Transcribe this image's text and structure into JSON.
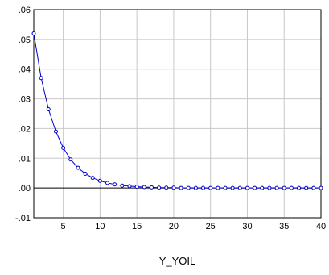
{
  "chart_data": {
    "type": "line",
    "title": "",
    "xlabel": "Y_YOIL",
    "ylabel": "",
    "xlim": [
      1,
      40
    ],
    "ylim": [
      -0.01,
      0.06
    ],
    "x_ticks": [
      5,
      10,
      15,
      20,
      25,
      30,
      35,
      40
    ],
    "x_tick_labels": [
      "5",
      "10",
      "15",
      "20",
      "25",
      "30",
      "35",
      "40"
    ],
    "y_ticks": [
      -0.01,
      0.0,
      0.01,
      0.02,
      0.03,
      0.04,
      0.05,
      0.06
    ],
    "y_tick_labels": [
      "-.01",
      ".00",
      ".01",
      ".02",
      ".03",
      ".04",
      ".05",
      ".06"
    ],
    "grid": true,
    "zero_line": true,
    "marker": "hollow-circle",
    "colors": {
      "series": "#0000cc",
      "grid": "#c8c8c8",
      "zero_line": "#000000"
    },
    "series": [
      {
        "x": [
          1,
          2,
          3,
          4,
          5,
          6,
          7,
          8,
          9,
          10,
          11,
          12,
          13,
          14,
          15,
          16,
          17,
          18,
          19,
          20,
          21,
          22,
          23,
          24,
          25,
          26,
          27,
          28,
          29,
          30,
          31,
          32,
          33,
          34,
          35,
          36,
          37,
          38,
          39,
          40
        ],
        "values": [
          0.052,
          0.037,
          0.0265,
          0.019,
          0.0135,
          0.0096,
          0.0068,
          0.0048,
          0.0034,
          0.0024,
          0.0017,
          0.0012,
          0.0008,
          0.0006,
          0.0004,
          0.0003,
          0.0002,
          0.0001,
          0.0001,
          0.0001,
          0.0,
          0.0,
          0.0,
          0.0,
          0.0,
          0.0,
          0.0,
          0.0,
          0.0,
          0.0,
          0.0,
          0.0,
          0.0,
          0.0,
          0.0,
          0.0,
          0.0,
          0.0,
          0.0,
          0.0
        ]
      }
    ]
  }
}
